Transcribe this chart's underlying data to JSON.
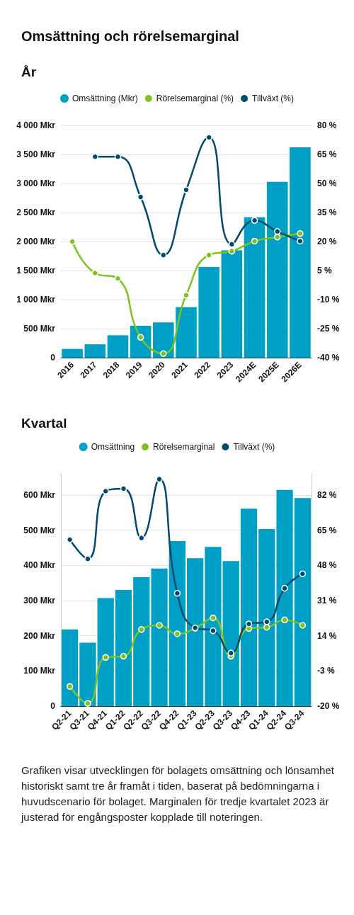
{
  "chart_data": [
    {
      "type": "bar",
      "title": "Omsättning och rörelsemarginal",
      "subtitle": "År",
      "categories": [
        "2016",
        "2017",
        "2018",
        "2019",
        "2020",
        "2021",
        "2022",
        "2023",
        "2024E",
        "2025E",
        "2026E"
      ],
      "series": [
        {
          "name": "Omsättning (Mkr)",
          "color": "#00a0c6",
          "values": [
            150,
            230,
            385,
            548,
            608,
            870,
            1561,
            1847,
            2419,
            3027,
            3623
          ]
        },
        {
          "name": "Rörelsemarginal (%)",
          "type": "line",
          "axis": "y2",
          "color": "#7dc21e",
          "values": [
            20,
            3.7,
            0.9,
            -29.5,
            -37.9,
            -7.7,
            13,
            15,
            20.2,
            22.3,
            24.1
          ]
        },
        {
          "name": "Tillväxt (%)",
          "type": "line",
          "axis": "y2",
          "color": "#004a6e",
          "values": [
            null,
            63.8,
            63.8,
            43,
            13,
            46.7,
            73.8,
            18.6,
            30.9,
            25.2,
            20.2
          ]
        }
      ],
      "ylim": [
        0,
        4000
      ],
      "yticks": [
        0,
        {
          "value": 500,
          "label": "500 Mkr"
        },
        {
          "value": 1000,
          "label": "1 000 Mkr"
        },
        {
          "value": 1500,
          "label": "1 500 Mkr"
        },
        {
          "value": 2000,
          "label": "2 000 Mkr"
        },
        {
          "value": 2500,
          "label": "2 500 Mkr"
        },
        {
          "value": 3000,
          "label": "3 000 Mkr"
        },
        {
          "value": 3500,
          "label": "3 500 Mkr"
        },
        {
          "value": 4000,
          "label": "4 000 Mkr"
        }
      ],
      "y2lim": [
        -40,
        80
      ],
      "y2ticks": [
        {
          "value": -40,
          "label": "-40 %"
        },
        {
          "value": -25,
          "label": "-25 %"
        },
        {
          "value": -10,
          "label": "-10 %"
        },
        {
          "value": 5,
          "label": "5 %"
        },
        {
          "value": 20,
          "label": "20 %"
        },
        {
          "value": 35,
          "label": "35 %"
        },
        {
          "value": 50,
          "label": "50 %"
        },
        {
          "value": 65,
          "label": "65 %"
        },
        {
          "value": 80,
          "label": "80 %"
        }
      ],
      "grid": "y",
      "legend": "top",
      "marker": "circle",
      "line_style": "solid"
    },
    {
      "type": "bar",
      "title": "Kvartal",
      "categories": [
        "Q2-21",
        "Q3-21",
        "Q4-21",
        "Q1-22",
        "Q2-22",
        "Q3-22",
        "Q4-22",
        "Q1-23",
        "Q2-23",
        "Q3-23",
        "Q4-23",
        "Q1-24",
        "Q2-24",
        "Q3-24"
      ],
      "series": [
        {
          "name": "Omsättning",
          "color": "#00a0c6",
          "values": [
            218,
            180,
            307,
            330,
            366,
            391,
            469,
            420,
            452,
            412,
            561,
            503,
            614,
            591
          ]
        },
        {
          "name": "Rörelsemarginal",
          "type": "line",
          "axis": "y2",
          "color": "#7dc21e",
          "values": [
            -10.5,
            -18.7,
            3.5,
            4.1,
            17,
            19,
            14.9,
            17.6,
            22.6,
            4.1,
            17.5,
            18.1,
            21.6,
            19
          ]
        },
        {
          "name": "Tillväxt (%)",
          "type": "line",
          "axis": "y2",
          "color": "#004a6e",
          "values": [
            60.4,
            51.1,
            83.8,
            85,
            61.2,
            89.6,
            34.5,
            17.8,
            16.4,
            5.6,
            19.7,
            20.7,
            36.9,
            43.9
          ]
        }
      ],
      "ylim": [
        0,
        660
      ],
      "yticks": [
        0,
        {
          "value": 100,
          "label": "100 Mkr"
        },
        {
          "value": 200,
          "label": "200 Mkr"
        },
        {
          "value": 300,
          "label": "300 Mkr"
        },
        {
          "value": 400,
          "label": "400 Mkr"
        },
        {
          "value": 500,
          "label": "500 Mkr"
        },
        {
          "value": 600,
          "label": "600 Mkr"
        }
      ],
      "y2lim": [
        -20,
        92.2
      ],
      "y2ticks": [
        {
          "value": -20,
          "label": "-20 %"
        },
        {
          "value": -3,
          "label": "-3 %"
        },
        {
          "value": 14,
          "label": "14 %"
        },
        {
          "value": 31,
          "label": "31 %"
        },
        {
          "value": 48,
          "label": "48 %"
        },
        {
          "value": 65,
          "label": "65 %"
        },
        {
          "value": 82,
          "label": "82 %"
        }
      ],
      "grid": "y",
      "legend": "top",
      "marker": "circle",
      "line_style": "solid",
      "annotations": [
        "Grafiken visar utvecklingen för bolagets omsättning och lönsamhet historiskt samt tre år framåt i tiden, baserat på bedömningarna i huvudscenario för bolaget. Marginalen för tredje kvartalet 2023 är justerad för engångsposter kopplade till noteringen."
      ]
    }
  ]
}
